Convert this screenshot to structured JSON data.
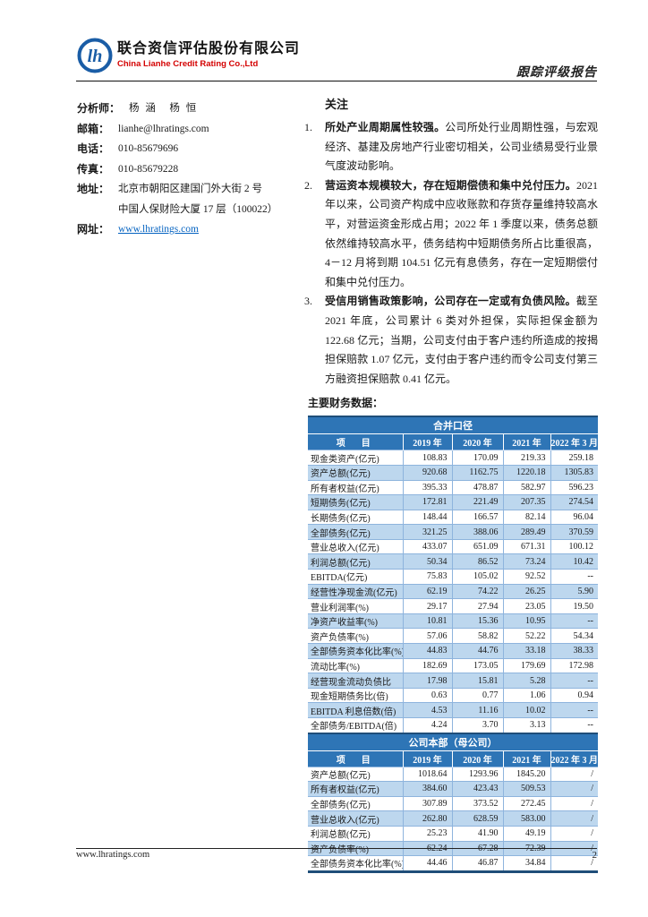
{
  "header": {
    "logo": "lianhe-circle-logo",
    "company_cn": "联合资信评估股份有限公司",
    "company_en": "China Lianhe Credit Rating Co.,Ltd",
    "report_type": "跟踪评级报告"
  },
  "contact": {
    "items": [
      {
        "label": "分析师：",
        "lines": [
          "杨 涵　杨 恒"
        ],
        "link": false,
        "analyst": true
      },
      {
        "label": "邮箱：",
        "lines": [
          "lianhe@lhratings.com"
        ],
        "link": false
      },
      {
        "label": "电话：",
        "lines": [
          "010-85679696"
        ],
        "link": false
      },
      {
        "label": "传真：",
        "lines": [
          "010-85679228"
        ],
        "link": false
      },
      {
        "label": "地址：",
        "lines": [
          "北京市朝阳区建国门外大街 2 号",
          "中国人保财险大厦 17 层（100022）"
        ],
        "link": false
      },
      {
        "label": "网址：",
        "lines": [
          "www.lhratings.com"
        ],
        "link": true
      }
    ]
  },
  "concerns": {
    "title": "关注",
    "items": [
      {
        "num": "1.",
        "bold": "所处产业周期属性较强。",
        "text": "公司所处行业周期性强，与宏观经济、基建及房地产行业密切相关，公司业绩易受行业景气度波动影响。"
      },
      {
        "num": "2.",
        "bold": "营运资本规模较大，存在短期偿债和集中兑付压力。",
        "text": "2021 年以来，公司资产构成中应收账款和存货存量维持较高水平，对营运资金形成占用；2022 年 1 季度以来，债务总额依然维持较高水平，债务结构中短期债务所占比重很高，4－12 月将到期 104.51 亿元有息债务，存在一定短期偿付和集中兑付压力。"
      },
      {
        "num": "3.",
        "bold": "受信用销售政策影响，公司存在一定或有负债风险。",
        "text": "截至 2021 年底，公司累计 6 类对外担保，实际担保金额为 122.68 亿元；当期，公司支付由于客户违约所造成的按揭担保赔款 1.07 亿元，支付由于客户违约而令公司支付第三方融资担保赔款 0.41 亿元。"
      }
    ]
  },
  "financial": {
    "caption": "主要财务数据：",
    "columns": [
      "项　目",
      "2019 年",
      "2020 年",
      "2021 年",
      "2022 年 3 月"
    ],
    "sections": [
      {
        "title": "合并口径",
        "rows": [
          [
            "现金类资产(亿元)",
            "108.83",
            "170.09",
            "219.33",
            "259.18"
          ],
          [
            "资产总额(亿元)",
            "920.68",
            "1162.75",
            "1220.18",
            "1305.83"
          ],
          [
            "所有者权益(亿元)",
            "395.33",
            "478.87",
            "582.97",
            "596.23"
          ],
          [
            "短期债务(亿元)",
            "172.81",
            "221.49",
            "207.35",
            "274.54"
          ],
          [
            "长期债务(亿元)",
            "148.44",
            "166.57",
            "82.14",
            "96.04"
          ],
          [
            "全部债务(亿元)",
            "321.25",
            "388.06",
            "289.49",
            "370.59"
          ],
          [
            "营业总收入(亿元)",
            "433.07",
            "651.09",
            "671.31",
            "100.12"
          ],
          [
            "利润总额(亿元)",
            "50.34",
            "86.52",
            "73.24",
            "10.42"
          ],
          [
            "EBITDA(亿元)",
            "75.83",
            "105.02",
            "92.52",
            "--"
          ],
          [
            "经营性净现金流(亿元)",
            "62.19",
            "74.22",
            "26.25",
            "5.90"
          ],
          [
            "营业利润率(%)",
            "29.17",
            "27.94",
            "23.05",
            "19.50"
          ],
          [
            "净资产收益率(%)",
            "10.81",
            "15.36",
            "10.95",
            "--"
          ],
          [
            "资产负债率(%)",
            "57.06",
            "58.82",
            "52.22",
            "54.34"
          ],
          [
            "全部债务资本化比率(%)",
            "44.83",
            "44.76",
            "33.18",
            "38.33"
          ],
          [
            "流动比率(%)",
            "182.69",
            "173.05",
            "179.69",
            "172.98"
          ],
          [
            "经营现金流动负债比",
            "17.98",
            "15.81",
            "5.28",
            "--"
          ],
          [
            "现金短期债务比(倍)",
            "0.63",
            "0.77",
            "1.06",
            "0.94"
          ],
          [
            "EBITDA 利息倍数(倍)",
            "4.53",
            "11.16",
            "10.02",
            "--"
          ],
          [
            "全部债务/EBITDA(倍)",
            "4.24",
            "3.70",
            "3.13",
            "--"
          ]
        ]
      },
      {
        "title": "公司本部（母公司）",
        "rows": [
          [
            "资产总额(亿元)",
            "1018.64",
            "1293.96",
            "1845.20",
            "/"
          ],
          [
            "所有者权益(亿元)",
            "384.60",
            "423.43",
            "509.53",
            "/"
          ],
          [
            "全部债务(亿元)",
            "307.89",
            "373.52",
            "272.45",
            "/"
          ],
          [
            "营业总收入(亿元)",
            "262.80",
            "628.59",
            "583.00",
            "/"
          ],
          [
            "利润总额(亿元)",
            "25.23",
            "41.90",
            "49.19",
            "/"
          ],
          [
            "资产负债率(%)",
            "62.24",
            "67.28",
            "72.39",
            "/"
          ],
          [
            "全部债务资本化比率(%)",
            "44.46",
            "46.87",
            "34.84",
            "/"
          ]
        ]
      }
    ]
  },
  "footer": {
    "site": "www.lhratings.com",
    "page": "2"
  },
  "colors": {
    "band_blue": "#2E75B6",
    "stripe_blue": "#BDD7EE",
    "border_dark_blue": "#1F4E79",
    "brand_red": "#D40000",
    "link_blue": "#0563C1"
  }
}
